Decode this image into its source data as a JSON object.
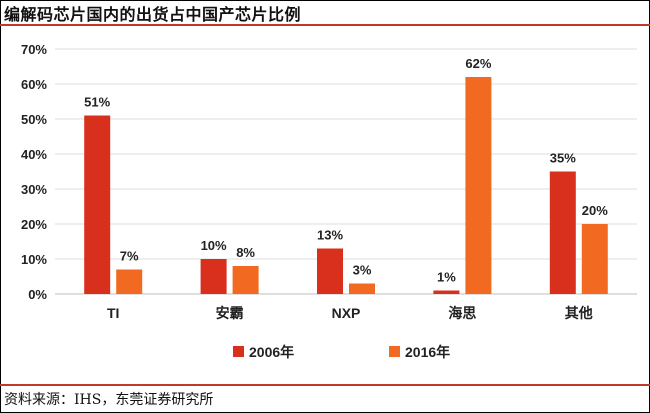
{
  "title": "编解码芯片国内的出货占中国产芯片比例",
  "source": "资料来源：IHS，东莞证券研究所",
  "chart_data": {
    "type": "bar",
    "categories": [
      "TI",
      "安霸",
      "NXP",
      "海思",
      "其他"
    ],
    "series": [
      {
        "name": "2006年",
        "color": "#d9301e",
        "values": [
          51,
          10,
          13,
          1,
          35
        ],
        "labels": [
          "51%",
          "10%",
          "13%",
          "1%",
          "35%"
        ]
      },
      {
        "name": "2016年",
        "color": "#f26a22",
        "values": [
          7,
          8,
          3,
          62,
          20
        ],
        "labels": [
          "7%",
          "8%",
          "3%",
          "62%",
          "20%"
        ]
      }
    ],
    "ylim": [
      0,
      70
    ],
    "yticks": [
      "0%",
      "10%",
      "20%",
      "30%",
      "40%",
      "50%",
      "60%",
      "70%"
    ],
    "grid": true,
    "legend": "bottom"
  }
}
